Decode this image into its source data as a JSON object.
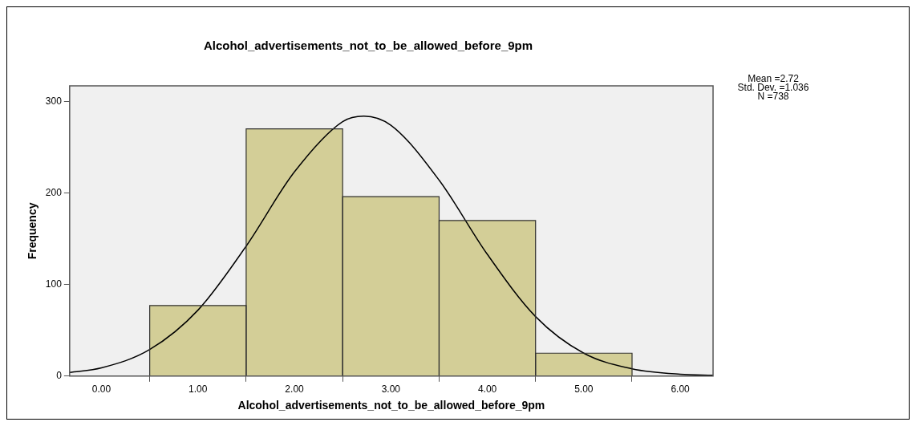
{
  "chart_data": {
    "type": "histogram",
    "title": "Alcohol_advertisements_not_to_be_allowed_before_9pm",
    "xlabel": "Alcohol_advertisements_not_to_be_allowed_before_9pm",
    "ylabel": "Frequency",
    "bins": [
      0.5,
      1.5,
      2.5,
      3.5,
      4.5,
      5.5
    ],
    "values": [
      77,
      270,
      196,
      170,
      25
    ],
    "color": "#d3ce97",
    "series": [
      {
        "type": "line",
        "color": "#000000",
        "x": [
          -0.33,
          0,
          0.5,
          1,
          1.5,
          2,
          2.5,
          2.72,
          3,
          3.5,
          4,
          4.5,
          5,
          5.5,
          6,
          6.34
        ],
        "values": [
          4,
          9,
          29,
          72,
          142,
          223,
          278,
          284,
          274,
          214,
          133,
          65,
          25,
          8,
          2,
          1
        ]
      }
    ],
    "xlim": [
      -0.33,
      6.34
    ],
    "xticks": [
      {
        "value": 0,
        "label": "0.00"
      },
      {
        "value": 1,
        "label": "1.00"
      },
      {
        "value": 2,
        "label": "2.00"
      },
      {
        "value": 3,
        "label": "3.00"
      },
      {
        "value": 4,
        "label": "4.00"
      },
      {
        "value": 5,
        "label": "5.00"
      },
      {
        "value": 6,
        "label": "6.00"
      }
    ],
    "ylim": [
      0,
      317
    ],
    "yticks": [
      0,
      100,
      200,
      300
    ],
    "grid": false,
    "legend": false,
    "marker": "none",
    "line_style": "solid",
    "annotations": [
      "Mean =2.72",
      "Std. Dev. =1.036",
      "N =738"
    ]
  }
}
